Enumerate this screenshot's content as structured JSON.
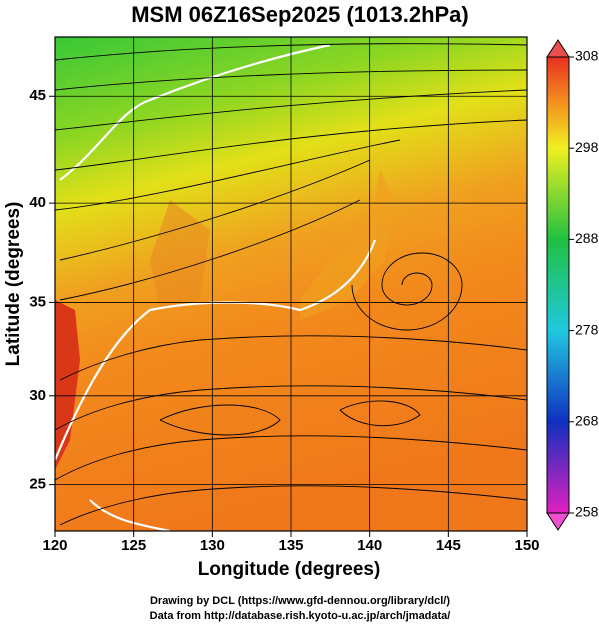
{
  "chart_data": {
    "type": "map",
    "title": "MSM 06Z16Sep2025 (1013.2hPa)",
    "xlabel": "Longitude (degrees)",
    "ylabel": "Latitude  (degrees)",
    "projection": "mercator",
    "xlim": [
      120,
      150
    ],
    "xticks": [
      120,
      125,
      130,
      135,
      140,
      145,
      150
    ],
    "ylim": [
      22.3,
      47.6
    ],
    "yticks": [
      25,
      30,
      35,
      40,
      45
    ],
    "grid": true,
    "colorbar": {
      "lim": [
        258,
        308
      ],
      "ticks": [
        258,
        268,
        278,
        288,
        298,
        308
      ]
    }
  },
  "credits": [
    "Drawing by DCL (https://www.gfd-dennou.org/library/dcl/)",
    "Data from http://database.rish.kyoto-u.ac.jp/arch/jmadata/"
  ]
}
